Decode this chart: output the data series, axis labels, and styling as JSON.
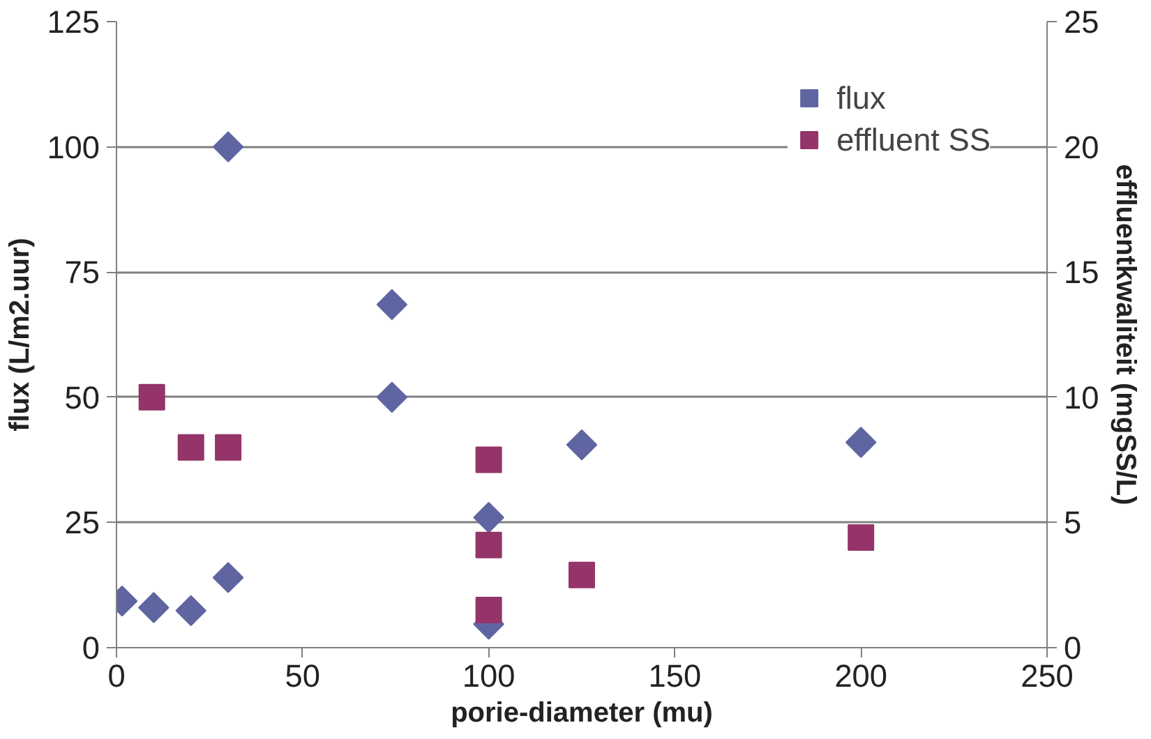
{
  "chart_data": {
    "type": "scatter",
    "xlabel": "porie-diameter (mu)",
    "ylabel": "flux (L/m2.uur)",
    "y2label": "effluentkwaliteit (mgSS/L)",
    "xlim": [
      0,
      250
    ],
    "xticks": [
      0,
      50,
      100,
      150,
      200,
      250
    ],
    "ylim": [
      0,
      125
    ],
    "yticks": [
      0,
      25,
      50,
      75,
      100,
      125
    ],
    "y2lim": [
      0,
      25
    ],
    "y2ticks": [
      0,
      5,
      10,
      15,
      20,
      25
    ],
    "grid": "y",
    "legend": "top right",
    "series": [
      {
        "name": "flux",
        "color": "#5f65a0",
        "marker": "diamond",
        "x": [
          1.5,
          10,
          20,
          30,
          30,
          74,
          74,
          100,
          100,
          125,
          200
        ],
        "values": [
          9.3,
          8,
          7.4,
          14,
          100,
          68.5,
          50,
          26,
          4.7,
          40.5,
          41
        ]
      },
      {
        "name": "effluent SS",
        "color": "#943469",
        "marker": "square",
        "axis": "y2",
        "x": [
          9.5,
          20,
          30,
          100,
          100,
          100,
          125,
          200
        ],
        "values": [
          10,
          8,
          8,
          7.5,
          4.1,
          1.5,
          2.9,
          4.4
        ]
      }
    ]
  }
}
